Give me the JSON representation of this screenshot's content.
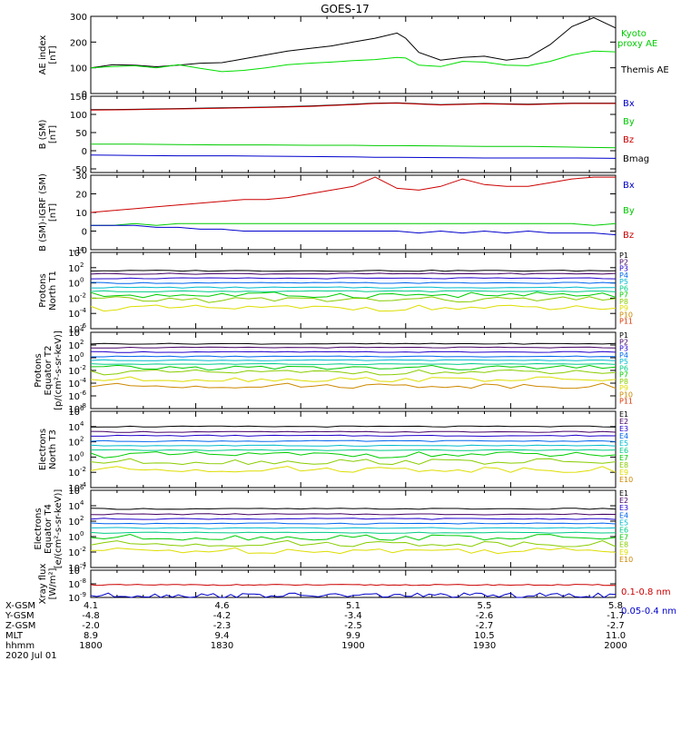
{
  "title": "GOES-17",
  "bottom": {
    "row_labels": [
      "X-GSM",
      "Y-GSM",
      "Z-GSM",
      "MLT",
      "hhmm",
      "2020 Jul 01"
    ],
    "columns": [
      {
        "x": "4.1",
        "y": "-4.8",
        "z": "-2.0",
        "mlt": "8.9",
        "hhmm": "1800"
      },
      {
        "x": "4.6",
        "y": "-4.2",
        "z": "-2.3",
        "mlt": "9.4",
        "hhmm": "1830"
      },
      {
        "x": "5.1",
        "y": "-3.4",
        "z": "-2.5",
        "mlt": "9.9",
        "hhmm": "1900"
      },
      {
        "x": "5.5",
        "y": "-2.6",
        "z": "-2.7",
        "mlt": "10.5",
        "hhmm": "1930"
      },
      {
        "x": "5.8",
        "y": "-1.7",
        "z": "-2.7",
        "mlt": "11.0",
        "hhmm": "2000"
      }
    ]
  },
  "colors": {
    "black": "#000000",
    "green": "#00dd00",
    "blue": "#0000dd",
    "red": "#cc0000",
    "P": [
      "#000000",
      "#440066",
      "#2200cc",
      "#0066ee",
      "#00bbcc",
      "#00cc88",
      "#00cc00",
      "#88cc00",
      "#dddd00",
      "#cc8800",
      "#dd3300",
      "#bb0000"
    ]
  },
  "chart_data": [
    {
      "type": "line",
      "panel": "ae",
      "ylabel": [
        "AE index",
        "[nT]"
      ],
      "ylim": [
        0,
        300
      ],
      "yticks": [
        "0",
        "100",
        "200",
        "300"
      ],
      "legend": [
        {
          "label": "Kyoto",
          "color": "#00cc00"
        },
        {
          "label": "proxy AE",
          "color": "#00cc00"
        },
        {
          "label": "Themis AE",
          "color": "#000000"
        }
      ],
      "x": [
        1800,
        1805,
        1810,
        1815,
        1820,
        1825,
        1830,
        1835,
        1840,
        1845,
        1850,
        1855,
        1900,
        1905,
        1910,
        1912,
        1915,
        1920,
        1925,
        1930,
        1935,
        1940,
        1945,
        1950,
        1955,
        2000
      ],
      "series": [
        {
          "name": "Themis AE",
          "color": "#000000",
          "values": [
            100,
            112,
            110,
            104,
            110,
            118,
            120,
            135,
            150,
            165,
            175,
            185,
            200,
            215,
            235,
            215,
            160,
            130,
            140,
            145,
            130,
            140,
            190,
            260,
            295,
            255
          ]
        },
        {
          "name": "Kyoto proxy AE",
          "color": "#00dd00",
          "values": [
            100,
            105,
            108,
            100,
            112,
            98,
            85,
            90,
            100,
            112,
            118,
            122,
            128,
            132,
            140,
            138,
            110,
            105,
            125,
            122,
            110,
            108,
            125,
            150,
            165,
            162
          ]
        }
      ]
    },
    {
      "type": "line",
      "panel": "bsm",
      "ylabel": [
        "B (SM)",
        "[nT]"
      ],
      "ylim": [
        -60,
        150
      ],
      "yticks": [
        "-50",
        "0",
        "50",
        "100",
        "150"
      ],
      "legend": [
        {
          "label": "Bx",
          "color": "#0000cc"
        },
        {
          "label": "By",
          "color": "#00cc00"
        },
        {
          "label": "Bz",
          "color": "#cc0000"
        },
        {
          "label": "Bmag",
          "color": "#000000"
        }
      ],
      "x": [
        1800,
        1810,
        1820,
        1830,
        1840,
        1850,
        1900,
        1905,
        1910,
        1920,
        1930,
        1940,
        1950,
        2000
      ],
      "series": [
        {
          "name": "Bmag",
          "color": "#000000",
          "values": [
            113,
            114,
            116,
            118,
            120,
            123,
            128,
            131,
            132,
            127,
            130,
            128,
            131,
            131
          ]
        },
        {
          "name": "Bz",
          "color": "#cc0000",
          "values": [
            112,
            113,
            115,
            117,
            119,
            122,
            127,
            130,
            131,
            126,
            129,
            127,
            130,
            130
          ]
        },
        {
          "name": "By",
          "color": "#00cc00",
          "values": [
            18,
            18,
            17,
            16,
            16,
            15,
            15,
            14,
            14,
            13,
            12,
            12,
            10,
            8
          ]
        },
        {
          "name": "Bx",
          "color": "#0000cc",
          "values": [
            -12,
            -13,
            -14,
            -14,
            -15,
            -16,
            -17,
            -18,
            -18,
            -19,
            -20,
            -20,
            -20,
            -21
          ]
        }
      ]
    },
    {
      "type": "line",
      "panel": "bigrf",
      "ylabel": [
        "B (SM)-IGRF (SM)",
        "[nT]"
      ],
      "ylim": [
        -10,
        30
      ],
      "yticks": [
        "-10",
        "0",
        "10",
        "20",
        "30"
      ],
      "legend": [
        {
          "label": "Bx",
          "color": "#0000cc"
        },
        {
          "label": "By",
          "color": "#00cc00"
        },
        {
          "label": "Bz",
          "color": "#cc0000"
        }
      ],
      "x": [
        1800,
        1805,
        1810,
        1815,
        1820,
        1825,
        1830,
        1835,
        1840,
        1845,
        1850,
        1855,
        1900,
        1905,
        1910,
        1915,
        1920,
        1925,
        1930,
        1935,
        1940,
        1945,
        1950,
        1955,
        2000
      ],
      "series": [
        {
          "name": "Bz",
          "color": "#cc0000",
          "values": [
            10,
            11,
            12,
            13,
            14,
            15,
            16,
            17,
            17,
            18,
            20,
            22,
            24,
            29,
            23,
            22,
            24,
            28,
            25,
            24,
            24,
            26,
            28,
            29,
            29
          ]
        },
        {
          "name": "By",
          "color": "#00cc00",
          "values": [
            3,
            3,
            4,
            3,
            4,
            4,
            4,
            4,
            4,
            4,
            4,
            4,
            4,
            4,
            4,
            4,
            4,
            4,
            4,
            4,
            4,
            4,
            4,
            3,
            4
          ]
        },
        {
          "name": "Bx",
          "color": "#0000cc",
          "values": [
            3,
            3,
            3,
            2,
            2,
            1,
            1,
            0,
            0,
            0,
            0,
            0,
            0,
            0,
            0,
            -1,
            0,
            -1,
            0,
            -1,
            0,
            -1,
            -1,
            -1,
            -2
          ]
        }
      ]
    },
    {
      "type": "line",
      "panel": "pnorth",
      "log": true,
      "ylabel": [
        "Protons",
        "North T1"
      ],
      "yexp": [
        -6,
        4
      ],
      "yticks": [
        "10-6",
        "10-4",
        "10-2",
        "100",
        "102",
        "104"
      ],
      "legend": [
        "P1",
        "P2",
        "P3",
        "P4",
        "P5",
        "P6",
        "P7",
        "P8",
        "P9",
        "P10",
        "P11"
      ],
      "series_log10": [
        1.6,
        1.2,
        0.6,
        0.0,
        -0.6,
        -1.1,
        -1.6,
        -2.2,
        -3.3,
        null,
        null
      ]
    },
    {
      "type": "line",
      "panel": "pequator",
      "log": true,
      "ylabel": [
        "Protons",
        "Equator T2",
        "[p/(cm²-s-sr-keV)]"
      ],
      "yexp": [
        -8,
        4
      ],
      "yticks": [
        "10-8",
        "10-6",
        "10-4",
        "10-2",
        "100",
        "102",
        "104"
      ],
      "legend": [
        "P1",
        "P2",
        "P3",
        "P4",
        "P5",
        "P6",
        "P7",
        "P8",
        "P9",
        "P10",
        "P11"
      ],
      "series_log10": [
        2.2,
        1.6,
        0.9,
        0.2,
        -0.4,
        -1.0,
        -1.6,
        -2.3,
        -3.4,
        -4.4,
        null
      ]
    },
    {
      "type": "line",
      "panel": "enorth",
      "log": true,
      "ylabel": [
        "Electrons",
        "North T3"
      ],
      "yexp": [
        -4,
        6
      ],
      "yticks": [
        "10-4",
        "10-2",
        "100",
        "102",
        "104",
        "106"
      ],
      "legend": [
        "E1",
        "E2",
        "E3",
        "E4",
        "E5",
        "E6",
        "E7",
        "E8",
        "E9",
        "E10"
      ],
      "series_log10": [
        4.0,
        3.3,
        2.8,
        2.1,
        1.5,
        0.9,
        0.3,
        -0.6,
        -1.6,
        null
      ]
    },
    {
      "type": "line",
      "panel": "equator",
      "log": true,
      "ylabel": [
        "Electrons",
        "Equator T4",
        "[e/(cm²-s-sr-keV)]"
      ],
      "yexp": [
        -4,
        6
      ],
      "yticks": [
        "10-4",
        "10-2",
        "100",
        "102",
        "104",
        "106"
      ],
      "legend": [
        "E1",
        "E2",
        "E3",
        "E4",
        "E5",
        "E6",
        "E7",
        "E8",
        "E9",
        "E10"
      ],
      "series_log10": [
        3.6,
        2.9,
        2.3,
        1.7,
        1.1,
        0.5,
        -0.1,
        -0.9,
        -1.8,
        null
      ]
    },
    {
      "type": "line",
      "panel": "xray",
      "log": true,
      "ylabel": [
        "Xray flux",
        "[W/m²]"
      ],
      "yexp": [
        -9,
        -7
      ],
      "yticks": [
        "10-9",
        "10-8",
        "10-7"
      ],
      "legend": [
        {
          "label": "0.1-0.8 nm",
          "color": "#cc0000"
        },
        {
          "label": "0.05-0.4 nm",
          "color": "#0000cc"
        }
      ],
      "series": [
        {
          "name": "0.1-0.8 nm",
          "color": "#cc0000",
          "log10": -8.08
        },
        {
          "name": "0.05-0.4 nm",
          "color": "#0000cc",
          "log10": -8.85
        }
      ]
    }
  ]
}
